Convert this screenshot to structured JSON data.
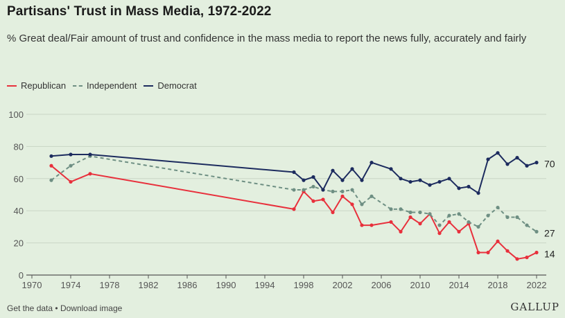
{
  "chart_data": {
    "type": "line",
    "title": "Partisans' Trust in Mass Media, 1972-2022",
    "subtitle": "% Great deal/Fair amount of trust and confidence in the mass media to report the news fully, accurately and fairly",
    "xlabel": "",
    "ylabel": "",
    "xlim": [
      1970,
      2023
    ],
    "ylim": [
      0,
      100
    ],
    "x_ticks": [
      1970,
      1974,
      1978,
      1982,
      1986,
      1990,
      1994,
      1998,
      2002,
      2006,
      2010,
      2014,
      2018,
      2022
    ],
    "y_ticks": [
      0,
      20,
      40,
      60,
      80,
      100
    ],
    "legend_position": "top-left",
    "series": [
      {
        "name": "Republican",
        "color": "#e8303c",
        "dash": "solid",
        "end_label": "14",
        "x": [
          1972,
          1974,
          1976,
          1997,
          1998,
          1999,
          2000,
          2001,
          2002,
          2003,
          2004,
          2005,
          2007,
          2008,
          2009,
          2010,
          2011,
          2012,
          2013,
          2014,
          2015,
          2016,
          2017,
          2018,
          2019,
          2020,
          2021,
          2022
        ],
        "values": [
          68,
          58,
          63,
          41,
          52,
          46,
          47,
          39,
          49,
          44,
          31,
          31,
          33,
          27,
          36,
          32,
          38,
          26,
          33,
          27,
          32,
          14,
          14,
          21,
          15,
          10,
          11,
          14
        ]
      },
      {
        "name": "Independent",
        "color": "#6e8f83",
        "dash": "dashed",
        "end_label": "27",
        "x": [
          1972,
          1974,
          1976,
          1997,
          1998,
          1999,
          2000,
          2001,
          2002,
          2003,
          2004,
          2005,
          2007,
          2008,
          2009,
          2010,
          2011,
          2012,
          2013,
          2014,
          2015,
          2016,
          2017,
          2018,
          2019,
          2020,
          2021,
          2022
        ],
        "values": [
          59,
          68,
          74,
          53,
          53,
          55,
          53,
          52,
          52,
          53,
          44,
          49,
          41,
          41,
          39,
          39,
          38,
          31,
          37,
          38,
          33,
          30,
          37,
          42,
          36,
          36,
          31,
          27
        ]
      },
      {
        "name": "Democrat",
        "color": "#1c2b5e",
        "dash": "solid",
        "end_label": "70",
        "x": [
          1972,
          1974,
          1976,
          1997,
          1998,
          1999,
          2000,
          2001,
          2002,
          2003,
          2004,
          2005,
          2007,
          2008,
          2009,
          2010,
          2011,
          2012,
          2013,
          2014,
          2015,
          2016,
          2017,
          2018,
          2019,
          2020,
          2021,
          2022
        ],
        "values": [
          74,
          75,
          75,
          64,
          59,
          61,
          53,
          65,
          59,
          66,
          59,
          70,
          66,
          60,
          58,
          59,
          56,
          58,
          60,
          54,
          55,
          51,
          72,
          76,
          69,
          73,
          68,
          70
        ]
      }
    ]
  },
  "footer": {
    "get_data": "Get the data",
    "separator": "•",
    "download": "Download image",
    "brand": "GALLUP"
  }
}
